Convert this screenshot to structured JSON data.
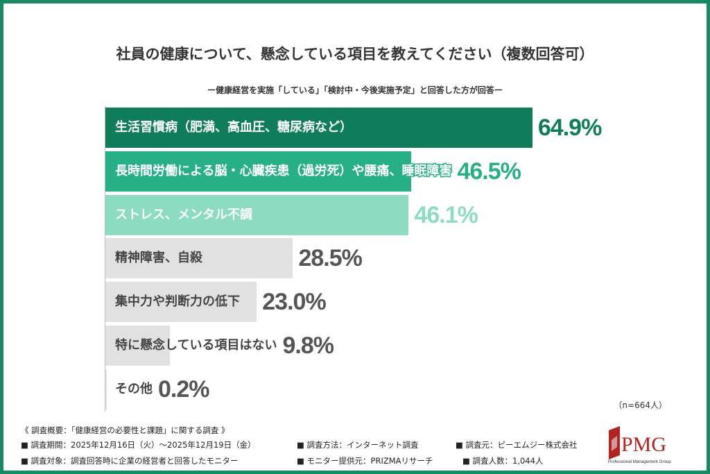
{
  "chart_data": {
    "type": "bar",
    "orientation": "horizontal",
    "title": "社員の健康について、懸念している項目を教えてください（複数回答可）",
    "subtitle": "ー健康経営を実施「している」「検討中・今後実施予定」と回答した方が回答ー",
    "categories": [
      "生活習慣病（肥満、高血圧、糖尿病など）",
      "長時間労働による脳・心臓疾患（過労死）や腰痛、睡眠障害",
      "ストレス、メンタル不調",
      "精神障害、自殺",
      "集中力や判断力の低下",
      "特に懸念している項目はない",
      "その他"
    ],
    "values": [
      64.9,
      46.5,
      46.1,
      28.5,
      23.0,
      9.8,
      0.2
    ],
    "value_labels": [
      "64.9%",
      "46.5%",
      "46.1%",
      "28.5%",
      "23.0%",
      "9.8%",
      "0.2%"
    ],
    "bar_colors": [
      "#0f7d5a",
      "#27b085",
      "#8cdcc1",
      "#e1e1e1",
      "#e1e1e1",
      "#e1e1e1",
      "#e1e1e1"
    ],
    "value_colors": [
      "#0f7d5a",
      "#27b085",
      "#8cdcc1",
      "#555555",
      "#555555",
      "#555555",
      "#555555"
    ],
    "label_colors": [
      "#ffffff",
      "#ffffff",
      "#ffffff",
      "#444444",
      "#444444",
      "#444444",
      "#444444"
    ],
    "xlim": [
      0,
      100
    ],
    "grid": false,
    "note": "（n=664人）"
  },
  "footer": {
    "heading": "《 調査概要：「健康経営の必要性と課題」に関する調査 》",
    "period": "■ 調査期間：2025年12月16日（火）～2025年12月19日（金）",
    "method": "■ 調査方法：インターネット調査",
    "organizer": "■ 調査元：ピーエムジー株式会社",
    "target": "■ 調査対象：調査回答時に企業の経営者と回答したモニター",
    "provider": "■ モニター提供元：PRIZMAリサーチ",
    "count": "■ 調査人数：1,044人"
  },
  "logo": {
    "text": "PMG",
    "tagline": "Professional Management Group",
    "color": "#b3231f"
  },
  "frame_color": "#178a62"
}
